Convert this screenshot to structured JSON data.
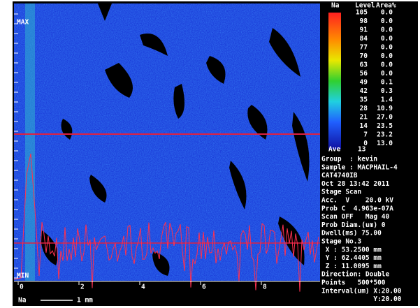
{
  "map": {
    "max_label": "MAX",
    "min_label": "MIN",
    "element": "Na",
    "scale_bar": "1 mm",
    "axis_labels": [
      "0",
      "2",
      "4",
      "6",
      "8"
    ]
  },
  "legend": {
    "headers": [
      "Na",
      "Level",
      "Area%"
    ],
    "levels": [
      "105",
      "98",
      "91",
      "84",
      "77",
      "70",
      "63",
      "56",
      "49",
      "42",
      "35",
      "28",
      "21",
      "14",
      "7",
      "0"
    ],
    "areas": [
      "0.0",
      "0.0",
      "0.0",
      "0.0",
      "0.0",
      "0.0",
      "0.0",
      "0.0",
      "0.1",
      "0.3",
      "1.4",
      "10.9",
      "27.0",
      "23.5",
      "23.2",
      "13.0"
    ],
    "average_label": "Ave",
    "average": "13"
  },
  "info": [
    "Group  : kevin",
    "Sample : MACPHAIL-4",
    "CAT4740IB",
    "Oct 28 13:42 2011",
    "Stage Scan",
    "Acc.  V    20.0 kV",
    "Prob C  4.963e-07A",
    "Scan OFF   Mag 40",
    "Prob Diam.(um) 0",
    "Dwell(ms) 75.00",
    "Stage No.3",
    " X : 53.2500 mm",
    " Y : 62.4405 mm",
    " Z : 11.0095 mm",
    "Direction: Double",
    "Points   500*500",
    "Interval(um) X:20.00",
    "             Y:20.00"
  ]
}
